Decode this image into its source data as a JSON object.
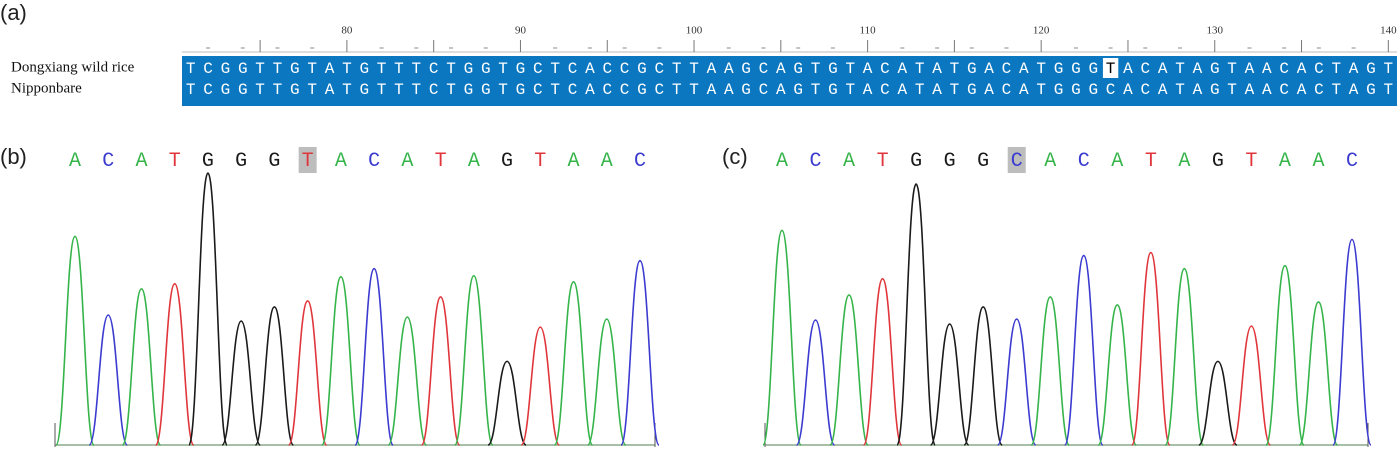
{
  "panels": {
    "a": {
      "label": "(a)",
      "ruler": [
        80,
        90,
        100,
        110,
        120,
        130,
        140
      ],
      "rows": [
        {
          "name": "Dongxiang wild rice",
          "sequence": "TCGGTTGTATGTTTCTGGTGCTCACCGCTTAAGCAGTGTACATATGACATGGGTACATAGTAACACTAGT"
        },
        {
          "name": "Nipponbare",
          "sequence": "TCGGTTGTATGTTTCTGGTGCTCACCGCTTAAGCAGTGTACATATGACATGGGCACATAGTAACACTAGT"
        }
      ]
    },
    "b": {
      "label": "(b)",
      "bases": "ACATGGGTACATAGTAAC",
      "peak_heights": [
        207,
        129,
        155,
        160,
        270,
        123,
        137,
        143,
        167,
        175,
        127,
        147,
        168,
        83,
        117,
        162,
        125,
        183
      ]
    },
    "c": {
      "label": "(c)",
      "bases": "ACATGGGCACATAGTAAC",
      "peak_heights": [
        213,
        124,
        149,
        165,
        259,
        120,
        137,
        125,
        147,
        188,
        139,
        191,
        175,
        83,
        118,
        178,
        142,
        204
      ]
    }
  },
  "base_colors": {
    "A": "#35b44a",
    "C": "#3b3bd0",
    "G": "#1a1a1a",
    "T": "#e0363b"
  }
}
